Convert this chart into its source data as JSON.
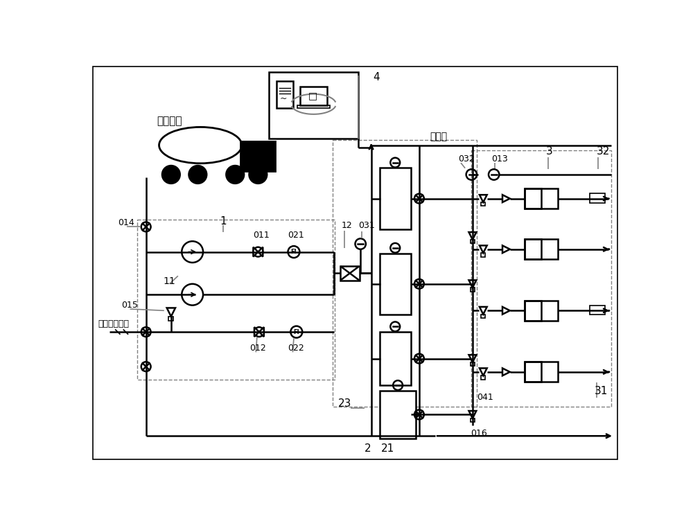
{
  "bg_color": "#ffffff",
  "line_color": "#000000",
  "labels": {
    "truck": "溶液罐车",
    "water_supply": "厂区供水系统",
    "gas_pipe": "气管道",
    "num_1": "1",
    "num_4": "4",
    "num_2": "2",
    "num_21": "21",
    "num_23": "23",
    "num_3": "3",
    "num_32": "32",
    "num_31": "31",
    "num_11": "11",
    "num_12": "12",
    "num_011": "011",
    "num_012": "012",
    "num_013": "013",
    "num_014": "014",
    "num_015": "015",
    "num_016": "016",
    "num_021": "021",
    "num_022": "022",
    "num_031": "031",
    "num_032": "032",
    "num_041": "041"
  },
  "figsize": [
    10.0,
    7.52
  ]
}
